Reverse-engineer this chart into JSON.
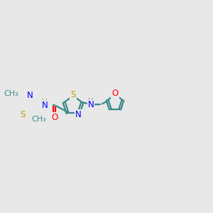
{
  "bg_color": "#e8e8e8",
  "bond_color": "#3a8a8a",
  "N_color": "#0000ff",
  "S_color": "#b8a000",
  "O_color": "#ff0000",
  "H_color": "#808080",
  "line_width": 1.6,
  "font_size": 8.5,
  "xlim": [
    -3.5,
    10.5
  ],
  "ylim": [
    -2.5,
    2.5
  ]
}
